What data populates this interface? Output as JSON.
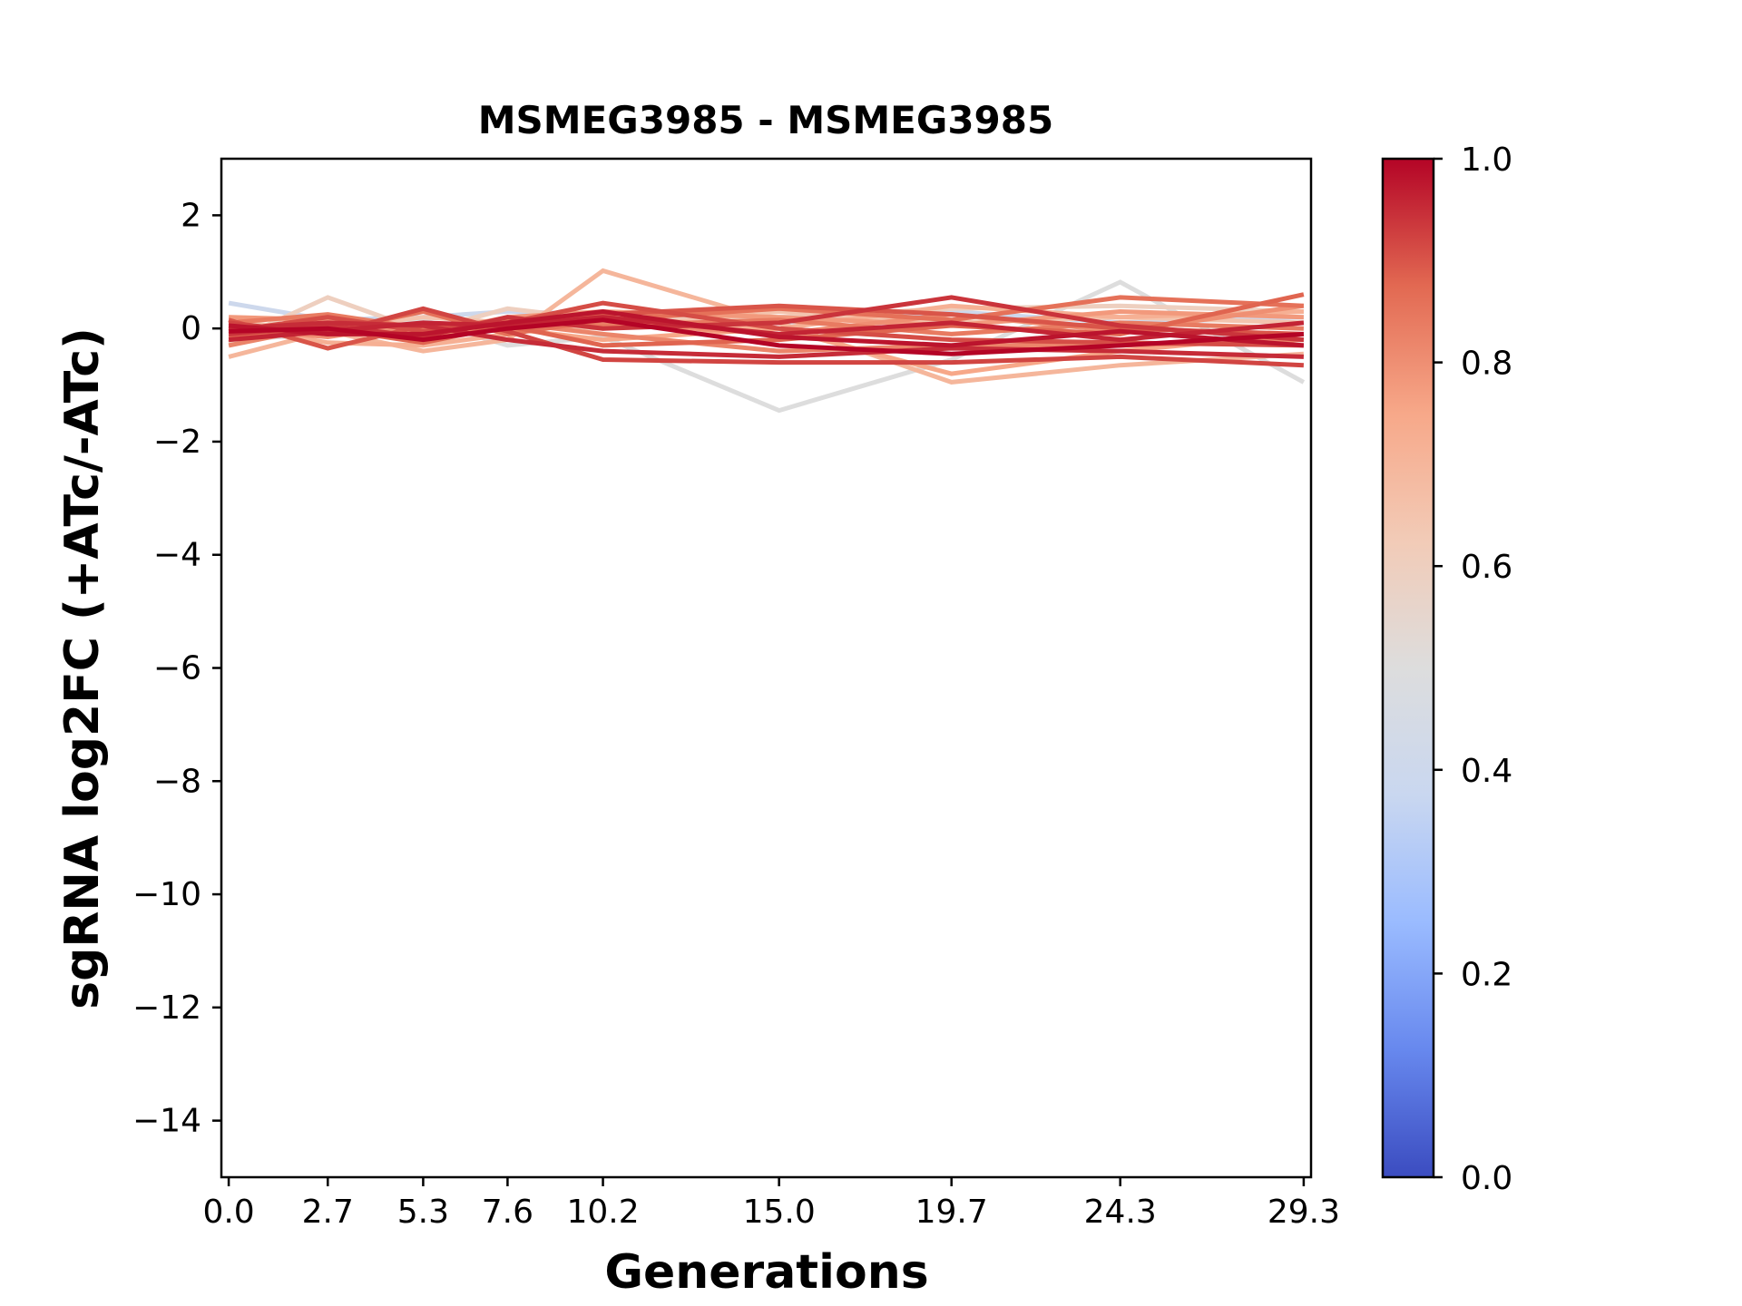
{
  "chart_data": {
    "type": "line",
    "title": "MSMEG3985 - MSMEG3985",
    "xlabel": "Generations",
    "ylabel": "sgRNA log2FC (+ATc/-ATc)",
    "x": [
      0.0,
      2.7,
      5.3,
      7.6,
      10.2,
      15.0,
      19.7,
      24.3,
      29.3
    ],
    "x_tick_labels": [
      "0.0",
      "2.7",
      "5.3",
      "7.6",
      "10.2",
      "15.0",
      "19.7",
      "24.3",
      "29.3"
    ],
    "xlim": [
      -0.2,
      29.5
    ],
    "ylim": [
      -15,
      3
    ],
    "y_ticks": [
      2,
      0,
      -2,
      -4,
      -6,
      -8,
      -10,
      -12,
      -14
    ],
    "y_tick_labels": [
      "2",
      "0",
      "−2",
      "−4",
      "−6",
      "−8",
      "−10",
      "−12",
      "−14"
    ],
    "grid": false,
    "colorbar": {
      "colormap": "coolwarm",
      "range": [
        0.0,
        1.0
      ],
      "ticks": [
        0.0,
        0.2,
        0.4,
        0.6,
        0.8,
        1.0
      ],
      "tick_labels": [
        "0.0",
        "0.2",
        "0.4",
        "0.6",
        "0.8",
        "1.0"
      ],
      "colors": [
        "#3b4cc0",
        "#6788ee",
        "#9abbff",
        "#c9d7f0",
        "#dddddd",
        "#f2cbb7",
        "#f7a889",
        "#e26952",
        "#b40426"
      ]
    },
    "series": [
      {
        "color_value": 0.4,
        "values": [
          0.45,
          0.15,
          0.2,
          0.3,
          0.25,
          0.1,
          0.3,
          0.1,
          0.2
        ]
      },
      {
        "color_value": 0.5,
        "values": [
          -0.2,
          -0.1,
          0.15,
          -0.3,
          -0.15,
          -1.45,
          -0.55,
          0.82,
          -0.95
        ]
      },
      {
        "color_value": 0.6,
        "values": [
          -0.25,
          0.55,
          -0.05,
          0.35,
          0.15,
          0.2,
          0.35,
          0.4,
          0.3
        ]
      },
      {
        "color_value": 0.65,
        "values": [
          0.1,
          0.0,
          0.2,
          0.1,
          0.0,
          0.3,
          0.1,
          0.2,
          0.1
        ]
      },
      {
        "color_value": 0.7,
        "values": [
          -0.5,
          -0.05,
          -0.4,
          -0.2,
          1.02,
          0.1,
          -0.95,
          -0.65,
          -0.45
        ]
      },
      {
        "color_value": 0.72,
        "values": [
          0.05,
          -0.25,
          -0.3,
          -0.1,
          0.2,
          0.0,
          0.4,
          0.2,
          0.3
        ]
      },
      {
        "color_value": 0.75,
        "values": [
          -0.1,
          0.1,
          0.05,
          0.0,
          -0.2,
          0.0,
          -0.8,
          -0.4,
          -0.1
        ]
      },
      {
        "color_value": 0.78,
        "values": [
          0.2,
          0.15,
          -0.1,
          0.2,
          0.3,
          0.2,
          0.05,
          0.3,
          0.2
        ]
      },
      {
        "color_value": 0.8,
        "values": [
          0.0,
          -0.15,
          0.1,
          -0.05,
          0.1,
          -0.1,
          0.25,
          -0.05,
          0.4
        ]
      },
      {
        "color_value": 0.82,
        "values": [
          -0.3,
          0.05,
          -0.2,
          0.1,
          -0.1,
          -0.4,
          -0.3,
          -0.3,
          -0.2
        ]
      },
      {
        "color_value": 0.84,
        "values": [
          0.1,
          0.25,
          0.0,
          0.15,
          0.05,
          0.15,
          -0.1,
          0.1,
          0.0
        ]
      },
      {
        "color_value": 0.86,
        "values": [
          0.05,
          -0.05,
          0.3,
          -0.1,
          0.15,
          0.35,
          0.15,
          0.55,
          0.4
        ]
      },
      {
        "color_value": 0.88,
        "values": [
          -0.15,
          0.0,
          -0.25,
          0.05,
          -0.3,
          -0.2,
          0.05,
          -0.1,
          0.6
        ]
      },
      {
        "color_value": 0.9,
        "values": [
          0.15,
          -0.35,
          0.05,
          0.0,
          0.25,
          0.4,
          0.25,
          0.0,
          -0.1
        ]
      },
      {
        "color_value": 0.91,
        "values": [
          -0.05,
          0.2,
          -0.05,
          0.1,
          0.45,
          0.0,
          -0.2,
          -0.25,
          -0.3
        ]
      },
      {
        "color_value": 0.92,
        "values": [
          0.1,
          -0.1,
          0.35,
          -0.05,
          -0.55,
          -0.6,
          -0.6,
          -0.5,
          -0.65
        ]
      },
      {
        "color_value": 0.94,
        "values": [
          -0.1,
          0.05,
          -0.15,
          0.2,
          0.0,
          0.1,
          0.55,
          0.05,
          -0.2
        ]
      },
      {
        "color_value": 0.95,
        "values": [
          0.0,
          0.1,
          0.05,
          -0.2,
          -0.4,
          -0.5,
          -0.35,
          -0.4,
          -0.5
        ]
      },
      {
        "color_value": 0.96,
        "values": [
          -0.2,
          -0.05,
          0.1,
          0.05,
          0.2,
          -0.1,
          0.1,
          -0.2,
          0.1
        ]
      },
      {
        "color_value": 0.98,
        "values": [
          0.05,
          -0.1,
          -0.1,
          0.1,
          0.3,
          -0.15,
          -0.3,
          -0.05,
          -0.3
        ]
      },
      {
        "color_value": 1.0,
        "values": [
          -0.05,
          0.0,
          -0.2,
          0.0,
          0.15,
          -0.3,
          -0.45,
          -0.3,
          -0.1
        ]
      }
    ]
  }
}
